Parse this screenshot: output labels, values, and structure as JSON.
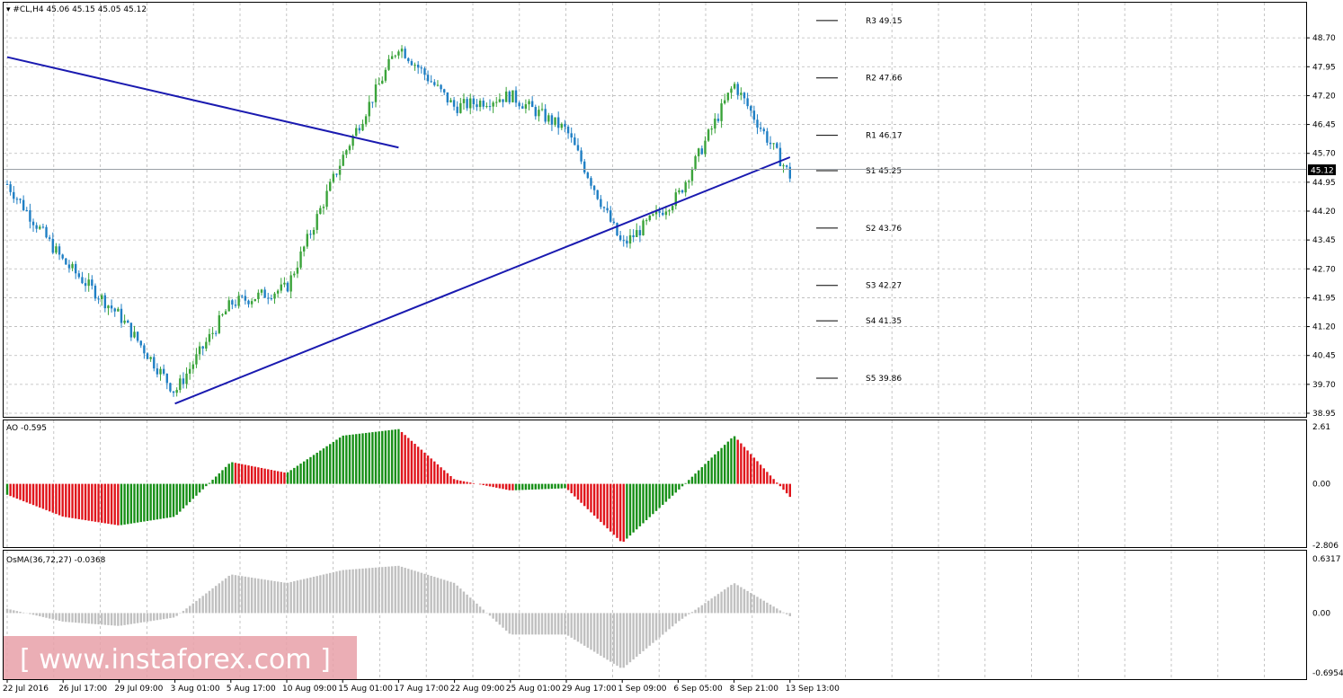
{
  "header": {
    "symbol_info": "#CL,H4  45.06 45.15 45.05 45.12",
    "ao_label": "AO -0.595",
    "osma_label": "OsMA(36,72,27) -0.0368"
  },
  "current_price": "45.12",
  "watermark": "[ www.instaforex.com ]",
  "colors": {
    "bull": "#3aa33a",
    "bear": "#1f7fc4",
    "trend_line": "#1a1ab0",
    "ao_up": "#178f17",
    "ao_down": "#e0141b",
    "osma": "#c0c0c0",
    "grid": "#b8b8b8",
    "price_tag_bg": "#000000"
  },
  "chart_data": [
    {
      "type": "candlestick",
      "title": "#CL,H4",
      "ylim": [
        38.95,
        49.45
      ],
      "price_ticks": [
        "48.70",
        "47.95",
        "47.20",
        "46.45",
        "45.70",
        "44.95",
        "44.20",
        "43.45",
        "42.70",
        "41.95",
        "41.20",
        "40.45",
        "39.70",
        "38.95"
      ],
      "x_labels": [
        "22 Jul 2016",
        "26 Jul 17:00",
        "29 Jul 09:00",
        "3 Aug 01:00",
        "5 Aug 17:00",
        "10 Aug 09:00",
        "15 Aug 01:00",
        "17 Aug 17:00",
        "22 Aug 09:00",
        "25 Aug 01:00",
        "29 Aug 17:00",
        "1 Sep 09:00",
        "6 Sep 05:00",
        "8 Sep 21:00",
        "13 Sep 13:00"
      ],
      "pivot_levels": [
        {
          "label": "R3 49.15",
          "value": 49.15
        },
        {
          "label": "R2 47.66",
          "value": 47.66
        },
        {
          "label": "R1 46.17",
          "value": 46.17
        },
        {
          "label": "S1 45.25",
          "value": 45.25
        },
        {
          "label": "S2 43.76",
          "value": 43.76
        },
        {
          "label": "S3 42.27",
          "value": 42.27
        },
        {
          "label": "S4 41.35",
          "value": 41.35
        },
        {
          "label": "S5 39.86",
          "value": 39.86
        }
      ],
      "trendlines": [
        {
          "name": "descending resistance",
          "from": {
            "x": "22 Jul 2016",
            "y": 48.2
          },
          "to": {
            "x": "17 Aug 17:00",
            "y": 45.85
          }
        },
        {
          "name": "ascending support",
          "from": {
            "x": "3 Aug 01:00",
            "y": 39.2
          },
          "to": {
            "x": "13 Sep 13:00",
            "y": 45.6
          }
        }
      ],
      "anchors": [
        {
          "x": "22 Jul 2016",
          "y": 44.9
        },
        {
          "x": "26 Jul 17:00",
          "y": 42.9
        },
        {
          "x": "29 Jul 09:00",
          "y": 41.5
        },
        {
          "x": "3 Aug 01:00",
          "y": 39.5
        },
        {
          "x": "5 Aug 17:00",
          "y": 41.8
        },
        {
          "x": "10 Aug 09:00",
          "y": 42.2
        },
        {
          "x": "15 Aug 01:00",
          "y": 45.6
        },
        {
          "x": "17 Aug 17:00",
          "y": 48.5
        },
        {
          "x": "22 Aug 09:00",
          "y": 46.9
        },
        {
          "x": "25 Aug 01:00",
          "y": 47.2
        },
        {
          "x": "29 Aug 17:00",
          "y": 46.3
        },
        {
          "x": "1 Sep 09:00",
          "y": 43.3
        },
        {
          "x": "6 Sep 05:00",
          "y": 44.6
        },
        {
          "x": "8 Sep 21:00",
          "y": 47.5
        },
        {
          "x": "13 Sep 13:00",
          "y": 45.12
        }
      ]
    },
    {
      "type": "bar",
      "title": "AO -0.595",
      "ylim": [
        -2.806,
        2.61
      ],
      "ticks": [
        "2.61",
        "0.00",
        "-2.806"
      ],
      "anchors": [
        {
          "x": "22 Jul 2016",
          "y": -0.5
        },
        {
          "x": "26 Jul 17:00",
          "y": -1.5
        },
        {
          "x": "29 Jul 09:00",
          "y": -1.9
        },
        {
          "x": "3 Aug 01:00",
          "y": -1.5
        },
        {
          "x": "5 Aug 17:00",
          "y": 1.0
        },
        {
          "x": "10 Aug 09:00",
          "y": 0.5
        },
        {
          "x": "15 Aug 01:00",
          "y": 2.2
        },
        {
          "x": "17 Aug 17:00",
          "y": 2.5
        },
        {
          "x": "22 Aug 09:00",
          "y": 0.2
        },
        {
          "x": "25 Aug 01:00",
          "y": -0.3
        },
        {
          "x": "29 Aug 17:00",
          "y": -0.2
        },
        {
          "x": "1 Sep 09:00",
          "y": -2.7
        },
        {
          "x": "6 Sep 05:00",
          "y": -0.3
        },
        {
          "x": "8 Sep 21:00",
          "y": 2.2
        },
        {
          "x": "13 Sep 13:00",
          "y": -0.595
        }
      ]
    },
    {
      "type": "bar",
      "title": "OsMA(36,72,27) -0.0368",
      "ylim": [
        -0.6954,
        0.6317
      ],
      "ticks": [
        "0.6317",
        "0.00",
        "-0.6954"
      ],
      "anchors": [
        {
          "x": "22 Jul 2016",
          "y": 0.05
        },
        {
          "x": "26 Jul 17:00",
          "y": -0.1
        },
        {
          "x": "29 Jul 09:00",
          "y": -0.15
        },
        {
          "x": "3 Aug 01:00",
          "y": -0.05
        },
        {
          "x": "5 Aug 17:00",
          "y": 0.45
        },
        {
          "x": "10 Aug 09:00",
          "y": 0.35
        },
        {
          "x": "15 Aug 01:00",
          "y": 0.5
        },
        {
          "x": "17 Aug 17:00",
          "y": 0.55
        },
        {
          "x": "22 Aug 09:00",
          "y": 0.35
        },
        {
          "x": "25 Aug 01:00",
          "y": -0.25
        },
        {
          "x": "29 Aug 17:00",
          "y": -0.25
        },
        {
          "x": "1 Sep 09:00",
          "y": -0.65
        },
        {
          "x": "6 Sep 05:00",
          "y": -0.1
        },
        {
          "x": "8 Sep 21:00",
          "y": 0.35
        },
        {
          "x": "13 Sep 13:00",
          "y": -0.0368
        }
      ]
    }
  ]
}
